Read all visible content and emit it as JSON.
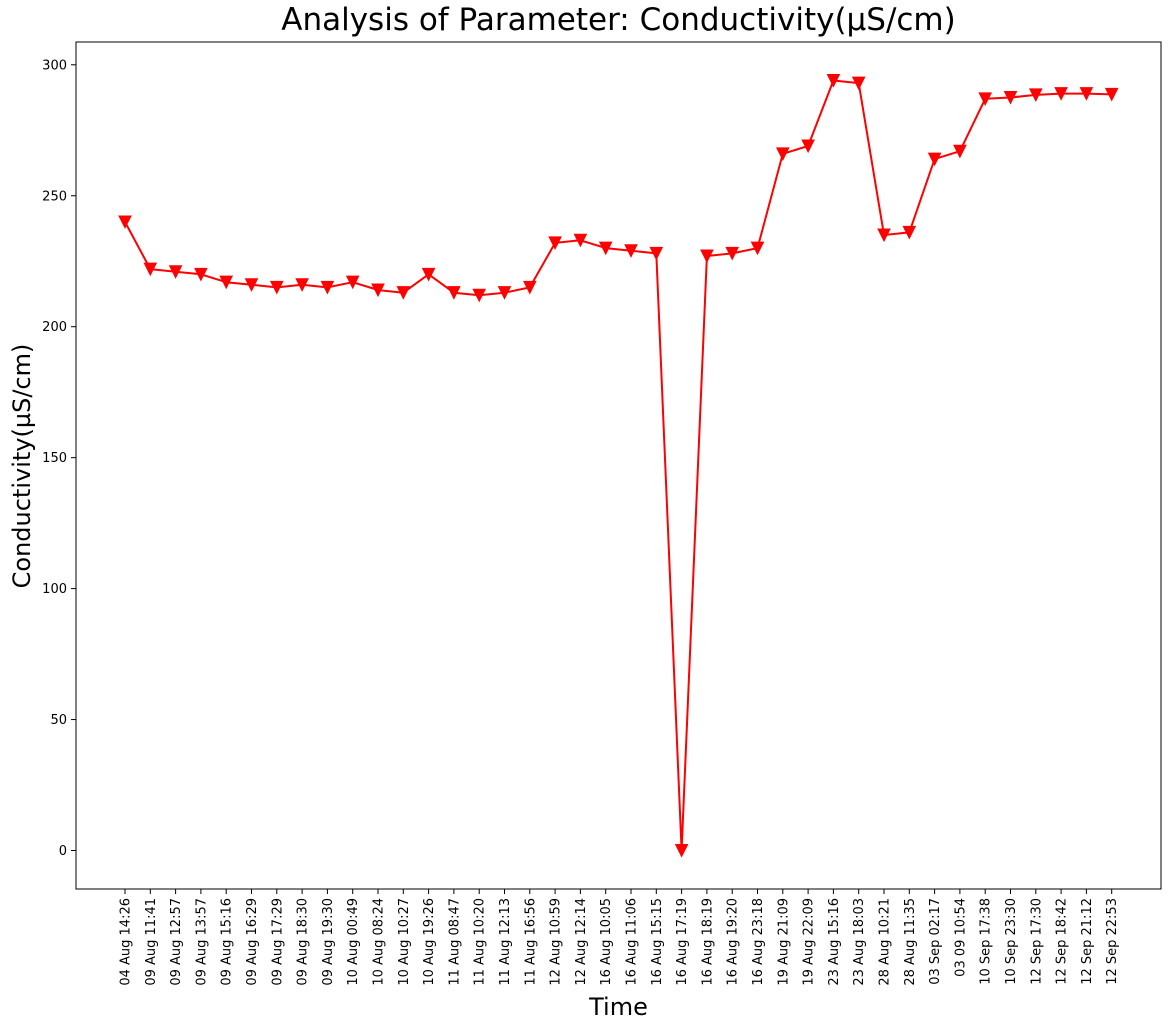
{
  "chart_data": {
    "type": "line",
    "title": "Analysis of Parameter: Conductivity(µS/cm)",
    "xlabel": "Time",
    "ylabel": "Conductivity(µS/cm)",
    "ylim": [
      -15,
      308
    ],
    "yticks": [
      0,
      50,
      100,
      150,
      200,
      250,
      300
    ],
    "grid": false,
    "marker": "triangle-down",
    "color": "#ff0000",
    "categories": [
      "04 Aug 14:26",
      "09 Aug 11:41",
      "09 Aug 12:57",
      "09 Aug 13:57",
      "09 Aug 15:16",
      "09 Aug 16:29",
      "09 Aug 17:29",
      "09 Aug 18:30",
      "09 Aug 19:30",
      "10 Aug 00:49",
      "10 Aug 08:24",
      "10 Aug 10:27",
      "10 Aug 19:26",
      "11 Aug 08:47",
      "11 Aug 10:20",
      "11 Aug 12:13",
      "11 Aug 16:56",
      "12 Aug 10:59",
      "12 Aug 12:14",
      "16 Aug 10:05",
      "16 Aug 11:06",
      "16 Aug 15:15",
      "16 Aug 17:19",
      "16 Aug 18:19",
      "16 Aug 19:20",
      "16 Aug 23:18",
      "19 Aug 21:09",
      "19 Aug 22:09",
      "23 Aug 15:16",
      "23 Aug 18:03",
      "28 Aug 10:21",
      "28 Aug 11:35",
      "03 Sep 02:17",
      "03 09 10:54",
      "10 Sep 17:38",
      "10 Sep 23:30",
      "12 Sep 17:30",
      "12 Sep 18:42",
      "12 Sep 21:12",
      "12 Sep 22:53"
    ],
    "series": [
      {
        "values": [
          240,
          222,
          221,
          220,
          217,
          216,
          215,
          216,
          215,
          217,
          214,
          213,
          220,
          213,
          212,
          213,
          215,
          232,
          233,
          230,
          229,
          228,
          0,
          227,
          228,
          230,
          266,
          269,
          294,
          293,
          235,
          236,
          264,
          267,
          287,
          287.5,
          288.5,
          289,
          289,
          288.7
        ]
      }
    ]
  }
}
